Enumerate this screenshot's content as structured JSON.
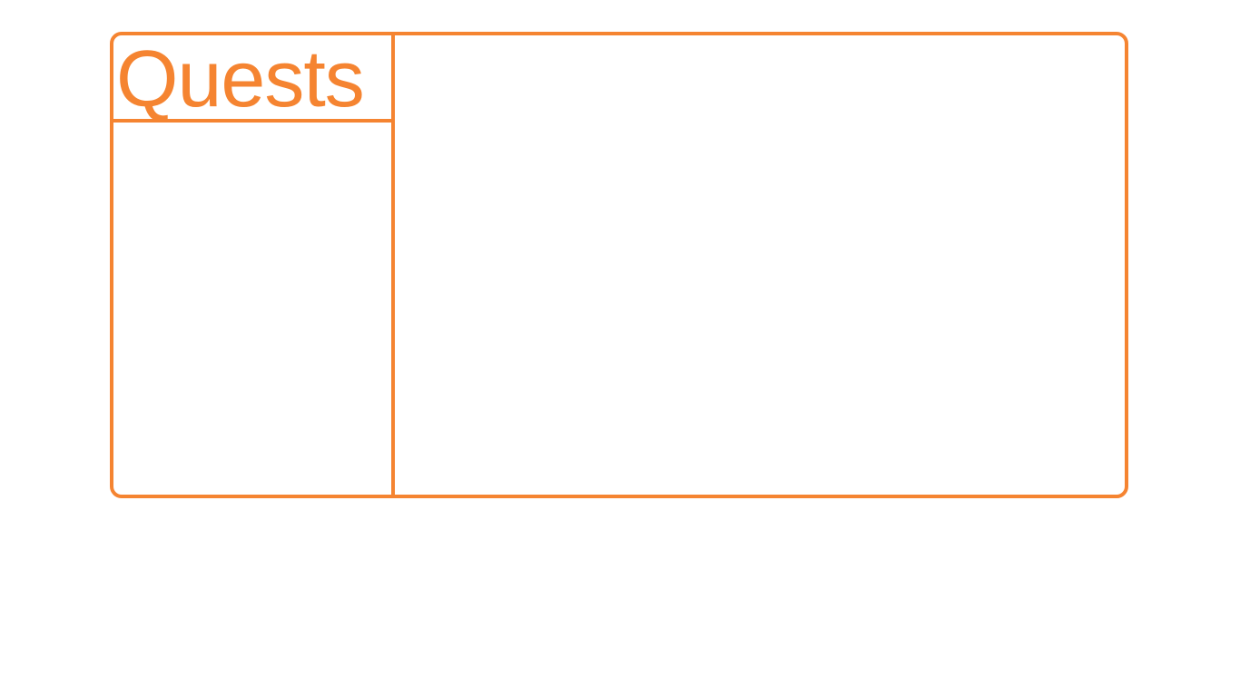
{
  "quest_window": {
    "title": "Quests",
    "accent_color": "#f58431",
    "quest_list": [],
    "detail": {}
  }
}
